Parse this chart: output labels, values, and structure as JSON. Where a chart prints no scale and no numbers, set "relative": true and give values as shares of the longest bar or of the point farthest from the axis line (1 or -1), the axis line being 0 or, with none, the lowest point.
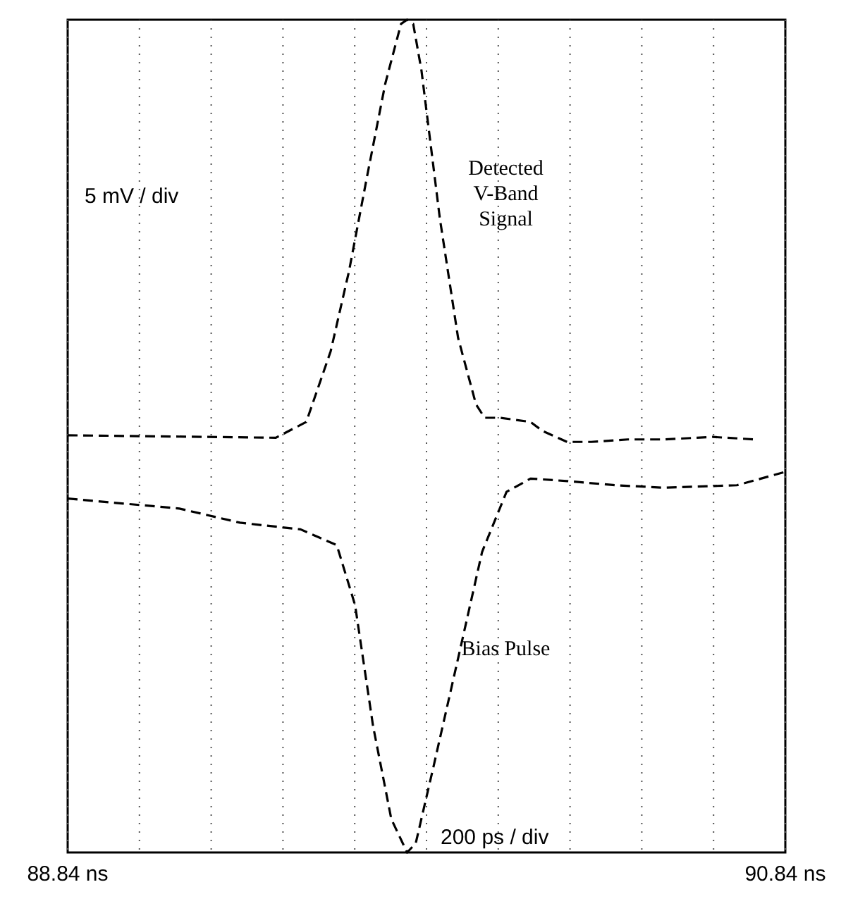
{
  "chart_data": {
    "type": "line",
    "relative": true,
    "x": [
      88.84,
      89.42,
      89.505,
      89.573,
      89.624,
      89.674,
      89.725,
      89.769,
      89.786,
      89.803,
      89.826,
      89.877,
      89.928,
      89.978,
      90.002,
      90.046,
      90.13,
      90.164,
      90.232,
      90.299,
      90.401,
      90.502,
      90.637,
      90.755
    ],
    "series": [
      {
        "name": "Detected V-Band Signal",
        "color": "#000000",
        "values": [
          0.501,
          0.498,
          0.517,
          0.602,
          0.698,
          0.811,
          0.923,
          0.995,
          1.0,
          0.995,
          0.939,
          0.762,
          0.618,
          0.538,
          0.522,
          0.522,
          0.517,
          0.506,
          0.493,
          0.493,
          0.496,
          0.496,
          0.499,
          0.496
        ]
      },
      {
        "name": "Bias Pulse",
        "color": "#000000",
        "x": [
          88.84,
          89.151,
          89.32,
          89.489,
          89.59,
          89.641,
          89.691,
          89.742,
          89.786,
          89.81,
          89.86,
          89.928,
          89.995,
          90.063,
          90.13,
          90.232,
          90.367,
          90.502,
          90.705,
          90.84
        ],
        "values": [
          0.425,
          0.413,
          0.396,
          0.388,
          0.369,
          0.297,
          0.152,
          0.04,
          0.0,
          0.011,
          0.104,
          0.233,
          0.361,
          0.433,
          0.449,
          0.446,
          0.441,
          0.438,
          0.441,
          0.457
        ]
      }
    ],
    "xlim": [
      88.84,
      90.84
    ],
    "xticks": [
      {
        "value": 88.84,
        "label": "88.84 ns"
      },
      {
        "value": 89.04,
        "label": null
      },
      {
        "value": 89.24,
        "label": null
      },
      {
        "value": 89.44,
        "label": null
      },
      {
        "value": 89.64,
        "label": null
      },
      {
        "value": 89.84,
        "label": null
      },
      {
        "value": 90.04,
        "label": null
      },
      {
        "value": 90.24,
        "label": null
      },
      {
        "value": 90.44,
        "label": null
      },
      {
        "value": 90.64,
        "label": null
      },
      {
        "value": 90.84,
        "label": "90.84 ns"
      }
    ],
    "grid": "x",
    "line_style": "dashed",
    "marker": "none",
    "annotations": [
      "5 mV / div",
      "200 ps / div"
    ]
  }
}
